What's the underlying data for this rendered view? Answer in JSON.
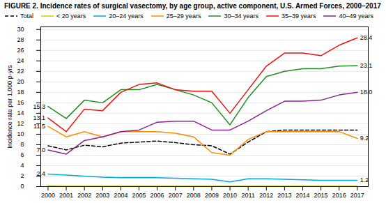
{
  "chart_data": {
    "type": "line",
    "title": "FIGURE 2. Incidence rates of surgical vasectomy, by age group, active component, U.S. Armed Forces, 2000–2017",
    "ylabel": "Incidence rate per 1,000 p-yrs",
    "x": [
      2000,
      2001,
      2002,
      2003,
      2004,
      2005,
      2006,
      2007,
      2008,
      2009,
      2010,
      2011,
      2012,
      2013,
      2014,
      2015,
      2016,
      2017
    ],
    "series": [
      {
        "name": "Total",
        "color": "#000000",
        "line_style": "dashed",
        "values": [
          7.8,
          7.0,
          7.9,
          7.6,
          8.3,
          8.5,
          8.7,
          8.4,
          8.0,
          7.8,
          6.2,
          8.5,
          10.5,
          10.8,
          10.8,
          10.8,
          10.8,
          10.8
        ]
      },
      {
        "name": "< 20 years",
        "color": "#cccc00",
        "line_style": "solid",
        "values": [
          0.15,
          0.1,
          0.1,
          0.1,
          0.1,
          0.1,
          0.1,
          0.1,
          0.1,
          0.1,
          0.1,
          0.1,
          0.1,
          0.1,
          0.1,
          0.1,
          0.1,
          0.1
        ]
      },
      {
        "name": "20–24 years",
        "color": "#00aadd",
        "line_style": "solid",
        "values": [
          2.4,
          2.2,
          2.0,
          1.8,
          1.7,
          1.7,
          1.7,
          1.6,
          1.5,
          1.4,
          0.9,
          1.5,
          1.5,
          1.4,
          1.3,
          1.2,
          1.2,
          1.2
        ]
      },
      {
        "name": "25–29 years",
        "color": "#ff8c00",
        "line_style": "solid",
        "values": [
          11.5,
          9.5,
          10.5,
          9.5,
          10.5,
          10.5,
          10.5,
          10.2,
          9.5,
          6.5,
          6.0,
          9.0,
          10.5,
          10.5,
          10.5,
          10.5,
          10.5,
          9.2
        ]
      },
      {
        "name": "30–34 years",
        "color": "#228b22",
        "line_style": "solid",
        "values": [
          15.3,
          13.0,
          16.5,
          16.0,
          18.5,
          18.5,
          19.5,
          18.5,
          17.5,
          16.0,
          11.8,
          17.0,
          21.0,
          22.0,
          22.5,
          22.5,
          23.0,
          23.1
        ]
      },
      {
        "name": "35–39 years",
        "color": "#ee1111",
        "line_style": "solid",
        "values": [
          13.1,
          10.5,
          14.8,
          14.5,
          18.0,
          19.5,
          19.8,
          18.5,
          18.2,
          18.2,
          14.0,
          18.5,
          23.0,
          25.5,
          25.5,
          25.0,
          27.0,
          28.4
        ]
      },
      {
        "name": "40–49 years",
        "color": "#882288",
        "line_style": "solid",
        "values": [
          7.0,
          6.2,
          8.8,
          9.5,
          10.5,
          10.8,
          12.3,
          12.5,
          12.5,
          10.8,
          10.8,
          12.5,
          14.5,
          16.3,
          16.3,
          16.5,
          17.5,
          18.0
        ]
      }
    ],
    "annotations": [
      {
        "text": "1.2",
        "x": 2017,
        "y": 1.2
      },
      {
        "text": "9.2",
        "x": 2017,
        "y": 9.2
      },
      {
        "text": "23.1",
        "x": 2017,
        "y": 23.1
      },
      {
        "text": "28.4",
        "x": 2017,
        "y": 28.4
      },
      {
        "text": "18.0",
        "x": 2017,
        "y": 18.0
      },
      {
        "text": "15.3",
        "x": 2000,
        "y": 15.3
      },
      {
        "text": "13.1",
        "x": 2000,
        "y": 13.1
      },
      {
        "text": "11.5",
        "x": 2000,
        "y": 11.5
      },
      {
        "text": "7.0",
        "x": 2000,
        "y": 7.0
      },
      {
        "text": "2.4",
        "x": 2000,
        "y": 2.4
      }
    ],
    "xlim": [
      1999.6,
      2017.6
    ],
    "xticks": [
      2000,
      2001,
      2002,
      2003,
      2004,
      2005,
      2006,
      2007,
      2008,
      2009,
      2010,
      2011,
      2012,
      2013,
      2014,
      2015,
      2016,
      2017
    ],
    "ylim": [
      0,
      30.5
    ],
    "yticks": [
      0,
      2,
      4,
      6,
      8,
      10,
      12,
      14,
      16,
      18,
      20,
      22,
      24,
      26,
      28,
      30
    ],
    "grid": true,
    "legend": "upper left"
  }
}
